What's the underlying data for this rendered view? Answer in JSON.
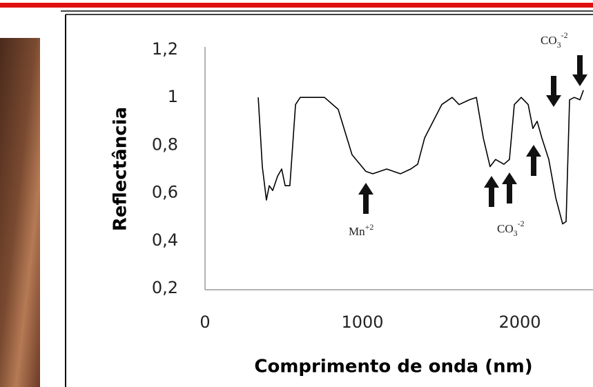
{
  "chart_data": {
    "type": "line",
    "x_label": "Comprimento de onda (nm)",
    "y_label": "Reflectância",
    "x": [
      338,
      364,
      390,
      408,
      430,
      461,
      487,
      509,
      539,
      575,
      605,
      759,
      846,
      934,
      1022,
      1066,
      1154,
      1241,
      1307,
      1351,
      1395,
      1504,
      1570,
      1614,
      1680,
      1724,
      1768,
      1811,
      1846,
      1899,
      1934,
      1965,
      2009,
      2053,
      2083,
      2110,
      2140,
      2184,
      2228,
      2272,
      2294,
      2316,
      2346,
      2382,
      2404
    ],
    "series": [
      {
        "name": "Reflectância",
        "color": "#000000",
        "values": [
          1.0,
          0.71,
          0.57,
          0.63,
          0.61,
          0.67,
          0.7,
          0.63,
          0.63,
          0.97,
          1.0,
          1.0,
          0.95,
          0.76,
          0.69,
          0.68,
          0.7,
          0.68,
          0.7,
          0.72,
          0.83,
          0.97,
          1.0,
          0.97,
          0.99,
          1.0,
          0.83,
          0.71,
          0.74,
          0.72,
          0.74,
          0.97,
          1.0,
          0.97,
          0.87,
          0.9,
          0.83,
          0.74,
          0.58,
          0.47,
          0.48,
          0.99,
          1.0,
          0.99,
          1.03
        ]
      }
    ],
    "xlim": [
      0,
      2500
    ],
    "xticks": [
      0,
      1000,
      2000
    ],
    "ylim": [
      0.2,
      1.2
    ],
    "yticks": [
      {
        "value": 0.2,
        "label": "0,2"
      },
      {
        "value": 0.4,
        "label": "0,4"
      },
      {
        "value": 0.6,
        "label": "0,6"
      },
      {
        "value": 0.8,
        "label": "0,8"
      },
      1,
      {
        "value": 1.2,
        "label": "1,2"
      }
    ],
    "grid": false,
    "annotations": [
      {
        "base": "Mn",
        "sup": "+2"
      },
      {
        "base": "CO",
        "sub": "3",
        "sup": "-2"
      },
      {
        "base": "CO",
        "sub": "3",
        "sup": "-2"
      }
    ]
  }
}
